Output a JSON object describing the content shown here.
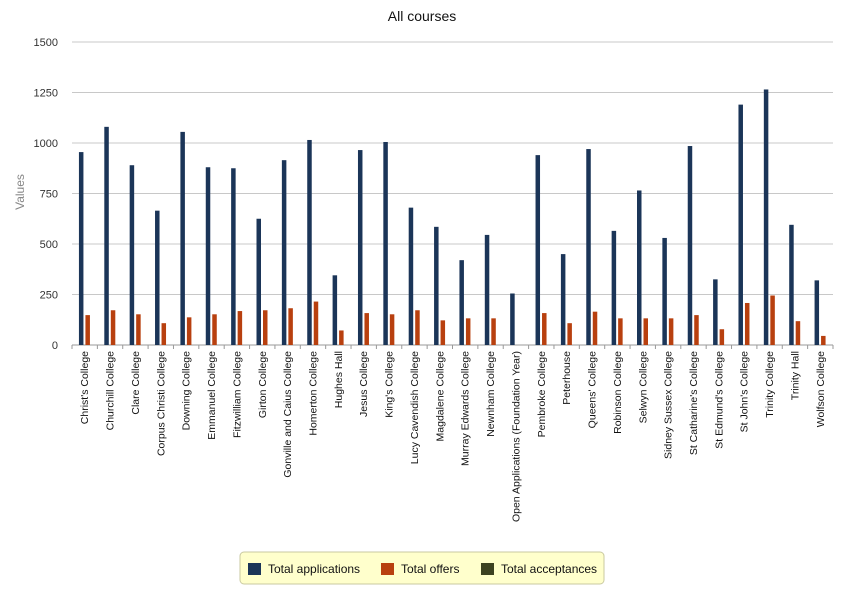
{
  "chart_data": {
    "type": "bar",
    "title": "All courses",
    "ylabel": "Values",
    "xlabel": "",
    "ylim": [
      0,
      1500
    ],
    "yticks": [
      0,
      250,
      500,
      750,
      1000,
      1250,
      1500
    ],
    "grid": true,
    "legend_position": "bottom",
    "categories": [
      "Christ's College",
      "Churchill College",
      "Clare College",
      "Corpus Christi College",
      "Downing College",
      "Emmanuel College",
      "Fitzwilliam College",
      "Girton College",
      "Gonville and Caius College",
      "Homerton College",
      "Hughes Hall",
      "Jesus College",
      "King's College",
      "Lucy Cavendish College",
      "Magdalene College",
      "Murray Edwards College",
      "Newnham College",
      "Open Applications (Foundation Year)",
      "Pembroke College",
      "Peterhouse",
      "Queens' College",
      "Robinson College",
      "Selwyn College",
      "Sidney Sussex College",
      "St Catharine's College",
      "St Edmund's College",
      "St John's College",
      "Trinity College",
      "Trinity Hall",
      "Wolfson College"
    ],
    "series": [
      {
        "name": "Total applications",
        "color": "#1b3558",
        "values": [
          955,
          1080,
          890,
          665,
          1055,
          880,
          875,
          625,
          915,
          1015,
          345,
          965,
          1005,
          680,
          585,
          420,
          545,
          255,
          940,
          450,
          970,
          565,
          765,
          530,
          985,
          325,
          1190,
          1265,
          595,
          320
        ]
      },
      {
        "name": "Total offers",
        "color": "#b8400f",
        "values": [
          148,
          172,
          152,
          108,
          137,
          152,
          168,
          172,
          182,
          215,
          72,
          158,
          152,
          172,
          122,
          132,
          132,
          0,
          158,
          108,
          165,
          132,
          132,
          132,
          148,
          78,
          208,
          245,
          118,
          45
        ]
      },
      {
        "name": "Total acceptances",
        "color": "#3c4221",
        "values": [
          0,
          0,
          0,
          0,
          0,
          0,
          0,
          0,
          0,
          0,
          0,
          0,
          0,
          0,
          0,
          0,
          0,
          0,
          0,
          0,
          0,
          0,
          0,
          0,
          0,
          0,
          0,
          0,
          0,
          0
        ]
      }
    ]
  }
}
